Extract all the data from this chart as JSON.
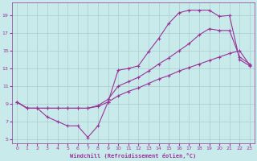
{
  "background_color": "#c8eaea",
  "grid_color": "#aacccc",
  "line_color": "#993399",
  "xlim": [
    -0.5,
    23.5
  ],
  "ylim": [
    4.5,
    20.5
  ],
  "xticks": [
    0,
    1,
    2,
    3,
    4,
    5,
    6,
    7,
    8,
    9,
    10,
    11,
    12,
    13,
    14,
    15,
    16,
    17,
    18,
    19,
    20,
    21,
    22,
    23
  ],
  "yticks": [
    5,
    7,
    9,
    11,
    13,
    15,
    17,
    19
  ],
  "xlabel": "Windchill (Refroidissement éolien,°C)",
  "series": [
    {
      "x": [
        0,
        1,
        2,
        3,
        4,
        5,
        6,
        7,
        8,
        9,
        10,
        11,
        12,
        13,
        14,
        15,
        16,
        17,
        18,
        19,
        20,
        21,
        22,
        23
      ],
      "y": [
        9.2,
        8.5,
        8.5,
        7.5,
        7.0,
        6.5,
        6.5,
        5.2,
        6.5,
        9.2,
        12.8,
        13.0,
        13.3,
        14.9,
        16.4,
        18.1,
        19.3,
        19.6,
        19.6,
        19.6,
        18.9,
        19.0,
        14.0,
        13.3
      ]
    },
    {
      "x": [
        0,
        1,
        2,
        3,
        4,
        5,
        6,
        7,
        8,
        9,
        10,
        11,
        12,
        13,
        14,
        15,
        16,
        17,
        18,
        19,
        20,
        21,
        22,
        23
      ],
      "y": [
        9.2,
        8.5,
        8.5,
        8.5,
        8.5,
        8.5,
        8.5,
        8.5,
        8.8,
        9.5,
        11.0,
        11.5,
        12.0,
        12.7,
        13.5,
        14.2,
        15.0,
        15.8,
        16.8,
        17.5,
        17.3,
        17.3,
        14.3,
        13.5
      ]
    },
    {
      "x": [
        0,
        1,
        2,
        3,
        4,
        5,
        6,
        7,
        8,
        9,
        10,
        11,
        12,
        13,
        14,
        15,
        16,
        17,
        18,
        19,
        20,
        21,
        22,
        23
      ],
      "y": [
        9.2,
        8.5,
        8.5,
        8.5,
        8.5,
        8.5,
        8.5,
        8.5,
        8.7,
        9.2,
        9.9,
        10.4,
        10.8,
        11.3,
        11.8,
        12.2,
        12.7,
        13.1,
        13.5,
        13.9,
        14.3,
        14.7,
        15.0,
        13.4
      ]
    }
  ]
}
